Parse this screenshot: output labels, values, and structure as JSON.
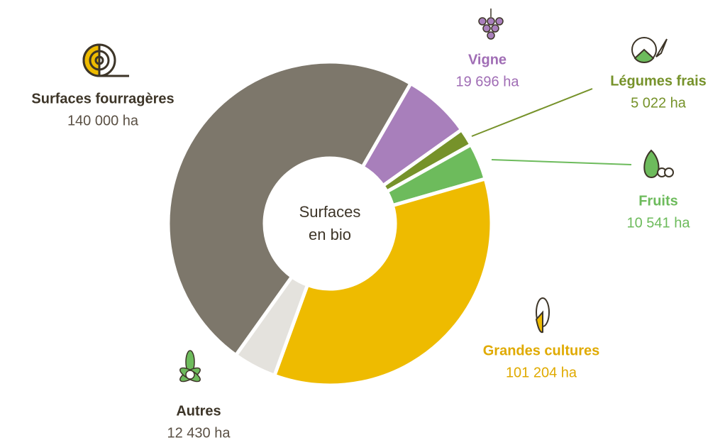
{
  "chart_data": {
    "type": "pie",
    "donut": true,
    "center_label": [
      "Surfaces",
      "en bio"
    ],
    "categories": [
      "Vigne",
      "Légumes frais",
      "Fruits",
      "Grandes cultures",
      "Autres",
      "Surfaces fourragères"
    ],
    "values": [
      19696,
      5022,
      10541,
      101204,
      12430,
      140000
    ],
    "value_labels": [
      "19 696 ha",
      "5 022 ha",
      "10 541 ha",
      "101 204 ha",
      "12 430 ha",
      "140 000 ha"
    ],
    "colors": [
      "#a87fbb",
      "#76922a",
      "#6dbb5c",
      "#eebb00",
      "#e4e2dd",
      "#7d776b"
    ],
    "label_colors": [
      "#a06db5",
      "#76922a",
      "#6dbb5c",
      "#e0aa00",
      "#3d3528",
      "#3d3528"
    ]
  }
}
